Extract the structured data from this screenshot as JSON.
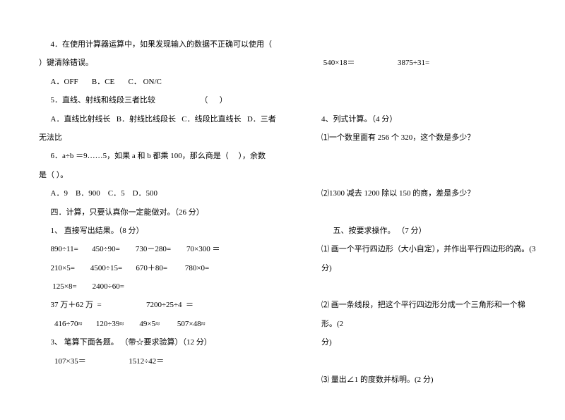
{
  "left": {
    "l1": "4．在使用计算器运算中，如果发现输入的数据不正确可以使用（",
    "l2": "）键清除错误。",
    "l3": "A．OFF       B．CE       C． ON/C",
    "l4": "5．直线、射线和线段三者比较                       （      ）",
    "l5": "A．直线比射线长   B．射线比线段长   C．线段比直线长   D．三者",
    "l6": "无法比",
    "l7": "6．a÷b ＝9……5，如果 a 和 b 都乘 100，那么商是（     ），余数",
    "l8": "是（     ）。",
    "l9": "A．9    B．900    C．5    D．500",
    "l10": "四．计算，只要认真你一定能做对。（26 分）",
    "l11": "1、 直接写出结果。（8 分）",
    "l12": "890÷11=       450÷90=        730－280=        70×300 ＝",
    "l13": "210×5=        4500÷15=       670＋80=         780×0=",
    "l14": " 125×8=        2400÷60=",
    "l15": "37 万＋62 万  =                       7200÷25÷4  ＝",
    "l16": "  416÷70≈       120÷39≈        49×5≈         507×48≈",
    "l17": "3、 笔算下面各题。 （带☆要求验算）（12 分）",
    "l18": "  107×35＝                      1512÷42＝"
  },
  "right": {
    "r1": " 540×18＝                      3875÷31=",
    "r2": "4、列式计算。（4 分）",
    "r3": "⑴一个数里面有 256 个 320，这个数是多少？",
    "r4": "⑵1300 减去 1200 除以 150 的商，差是多少？",
    "r5": "五、按要求操作。 （7 分）",
    "r6": "⑴  画一个平行四边形（大小自定），并作出平行四边形的高。(3 分)",
    "r7": "⑵  画一条线段，把这个平行四边形分成一个三角形和一个梯形。(2",
    "r8": "分)",
    "r9": "⑶  量出∠1 的度数并标明。(2 分)"
  }
}
